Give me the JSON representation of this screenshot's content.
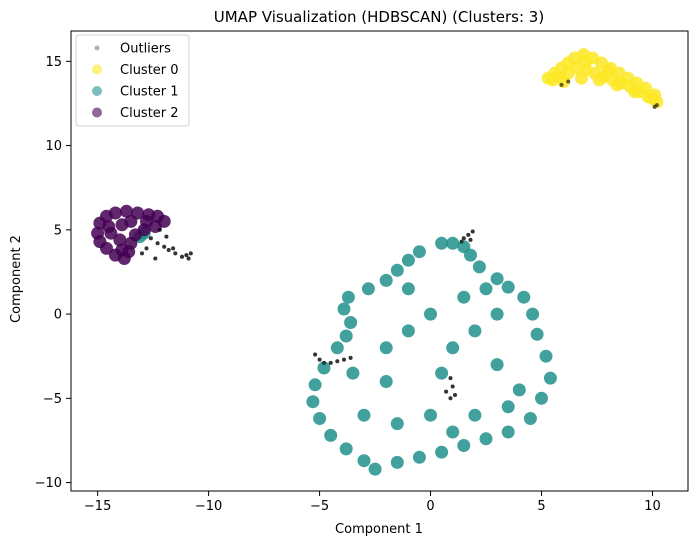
{
  "chart_data": {
    "type": "scatter",
    "title": "UMAP Visualization (HDBSCAN)  (Clusters: 3)",
    "xlabel": "Component 1",
    "ylabel": "Component 2",
    "xlim": [
      -16.2,
      11.6
    ],
    "ylim": [
      -10.5,
      16.8
    ],
    "xticks": [
      -15,
      -10,
      -5,
      0,
      5,
      10
    ],
    "yticks": [
      -10,
      -5,
      0,
      5,
      10,
      15
    ],
    "xtick_labels": [
      "−15",
      "−10",
      "−5",
      "0",
      "5",
      "10"
    ],
    "ytick_labels": [
      "−10",
      "−5",
      "0",
      "5",
      "10",
      "15"
    ],
    "grid": false,
    "legend_position": "top-left",
    "series": [
      {
        "name": "Outliers",
        "color": "#000000",
        "points": [
          [
            -12.3,
            4.2
          ],
          [
            -12.0,
            4.0
          ],
          [
            -11.8,
            3.8
          ],
          [
            -11.5,
            3.6
          ],
          [
            -11.2,
            3.4
          ],
          [
            -11.0,
            3.5
          ],
          [
            -10.8,
            3.6
          ],
          [
            -10.9,
            3.3
          ],
          [
            -12.6,
            4.5
          ],
          [
            -12.8,
            3.9
          ],
          [
            -13.0,
            3.6
          ],
          [
            -12.4,
            3.3
          ],
          [
            -11.6,
            3.9
          ],
          [
            -12.2,
            5.0
          ],
          [
            -11.9,
            4.6
          ],
          [
            1.5,
            4.5
          ],
          [
            1.7,
            4.7
          ],
          [
            1.9,
            4.9
          ],
          [
            1.4,
            4.3
          ],
          [
            1.8,
            4.4
          ],
          [
            -5.2,
            -2.4
          ],
          [
            -5.0,
            -2.7
          ],
          [
            -4.8,
            -2.9
          ],
          [
            -4.5,
            -2.9
          ],
          [
            -4.2,
            -2.8
          ],
          [
            -3.9,
            -2.7
          ],
          [
            -3.6,
            -2.6
          ],
          [
            0.9,
            -3.8
          ],
          [
            1.0,
            -4.3
          ],
          [
            1.1,
            -4.8
          ],
          [
            0.9,
            -5.0
          ],
          [
            0.7,
            -4.6
          ],
          [
            6.2,
            13.8
          ],
          [
            5.9,
            13.6
          ],
          [
            10.2,
            12.4
          ],
          [
            10.1,
            12.3
          ]
        ]
      },
      {
        "name": "Cluster 0",
        "color": "#fde725",
        "points": [
          [
            5.3,
            14.0
          ],
          [
            5.6,
            14.3
          ],
          [
            5.9,
            14.6
          ],
          [
            6.2,
            14.9
          ],
          [
            6.5,
            15.2
          ],
          [
            6.9,
            15.4
          ],
          [
            7.3,
            15.2
          ],
          [
            7.7,
            14.9
          ],
          [
            8.1,
            14.6
          ],
          [
            8.5,
            14.3
          ],
          [
            8.9,
            14.0
          ],
          [
            9.3,
            13.7
          ],
          [
            9.7,
            13.4
          ],
          [
            10.1,
            13.0
          ],
          [
            10.2,
            12.6
          ],
          [
            9.8,
            12.9
          ],
          [
            9.4,
            13.2
          ],
          [
            9.0,
            13.5
          ],
          [
            8.6,
            13.7
          ],
          [
            8.2,
            13.9
          ],
          [
            7.8,
            14.1
          ],
          [
            7.4,
            14.3
          ],
          [
            7.0,
            14.5
          ],
          [
            6.6,
            14.6
          ],
          [
            6.2,
            14.3
          ],
          [
            5.8,
            14.1
          ],
          [
            5.5,
            13.9
          ],
          [
            6.0,
            13.8
          ],
          [
            6.8,
            14.0
          ],
          [
            7.6,
            13.9
          ],
          [
            8.4,
            13.6
          ],
          [
            9.2,
            13.2
          ],
          [
            10.0,
            12.8
          ],
          [
            7.0,
            15.0
          ],
          [
            8.0,
            14.4
          ]
        ]
      },
      {
        "name": "Cluster 1",
        "color": "#21918c",
        "points": [
          [
            -13.1,
            4.6
          ],
          [
            -12.9,
            4.8
          ],
          [
            1.0,
            4.2
          ],
          [
            1.5,
            4.0
          ],
          [
            0.5,
            4.2
          ],
          [
            -0.5,
            3.7
          ],
          [
            -1.0,
            3.2
          ],
          [
            -1.5,
            2.6
          ],
          [
            -2.0,
            2.0
          ],
          [
            -2.8,
            1.5
          ],
          [
            -3.7,
            1.0
          ],
          [
            -3.9,
            0.3
          ],
          [
            -3.6,
            -0.5
          ],
          [
            -3.8,
            -1.3
          ],
          [
            -4.2,
            -2.0
          ],
          [
            -4.8,
            -3.2
          ],
          [
            -5.2,
            -4.2
          ],
          [
            -5.3,
            -5.2
          ],
          [
            -5.0,
            -6.2
          ],
          [
            -4.5,
            -7.2
          ],
          [
            -3.8,
            -8.0
          ],
          [
            -3.0,
            -8.7
          ],
          [
            -2.5,
            -9.2
          ],
          [
            -1.5,
            -8.8
          ],
          [
            -0.5,
            -8.5
          ],
          [
            0.5,
            -8.2
          ],
          [
            1.5,
            -7.8
          ],
          [
            2.5,
            -7.4
          ],
          [
            3.5,
            -7.0
          ],
          [
            4.5,
            -6.2
          ],
          [
            5.0,
            -5.0
          ],
          [
            5.4,
            -3.8
          ],
          [
            5.2,
            -2.5
          ],
          [
            4.8,
            -1.2
          ],
          [
            4.6,
            0.0
          ],
          [
            4.2,
            1.0
          ],
          [
            3.5,
            1.6
          ],
          [
            3.0,
            2.1
          ],
          [
            2.2,
            2.8
          ],
          [
            1.8,
            3.5
          ],
          [
            0.0,
            0.0
          ],
          [
            -1.0,
            -1.0
          ],
          [
            1.0,
            -2.0
          ],
          [
            2.0,
            -1.0
          ],
          [
            3.0,
            -3.0
          ],
          [
            -2.0,
            -4.0
          ],
          [
            -3.0,
            -6.0
          ],
          [
            0.0,
            -6.0
          ],
          [
            2.0,
            -6.0
          ],
          [
            4.0,
            -4.5
          ],
          [
            -1.0,
            1.5
          ],
          [
            1.5,
            1.0
          ],
          [
            3.0,
            0.0
          ],
          [
            -2.0,
            -2.0
          ],
          [
            0.5,
            -3.5
          ],
          [
            -1.5,
            -6.5
          ],
          [
            1.0,
            -7.0
          ],
          [
            3.5,
            -5.5
          ],
          [
            -3.5,
            -3.5
          ],
          [
            2.5,
            1.5
          ]
        ]
      },
      {
        "name": "Cluster 2",
        "color": "#440154",
        "points": [
          [
            -15.0,
            4.8
          ],
          [
            -14.9,
            5.4
          ],
          [
            -14.6,
            5.8
          ],
          [
            -14.2,
            6.0
          ],
          [
            -13.7,
            6.1
          ],
          [
            -13.2,
            6.0
          ],
          [
            -12.7,
            5.9
          ],
          [
            -12.3,
            5.8
          ],
          [
            -12.0,
            5.5
          ],
          [
            -12.4,
            5.2
          ],
          [
            -12.9,
            5.0
          ],
          [
            -13.3,
            4.7
          ],
          [
            -13.5,
            4.2
          ],
          [
            -13.6,
            3.7
          ],
          [
            -13.8,
            3.3
          ],
          [
            -14.2,
            3.5
          ],
          [
            -14.6,
            3.9
          ],
          [
            -14.9,
            4.3
          ],
          [
            -14.4,
            4.8
          ],
          [
            -13.9,
            5.3
          ],
          [
            -14.0,
            4.4
          ],
          [
            -13.5,
            5.5
          ],
          [
            -14.5,
            5.2
          ],
          [
            -13.9,
            3.8
          ],
          [
            -12.8,
            5.5
          ]
        ]
      }
    ]
  }
}
